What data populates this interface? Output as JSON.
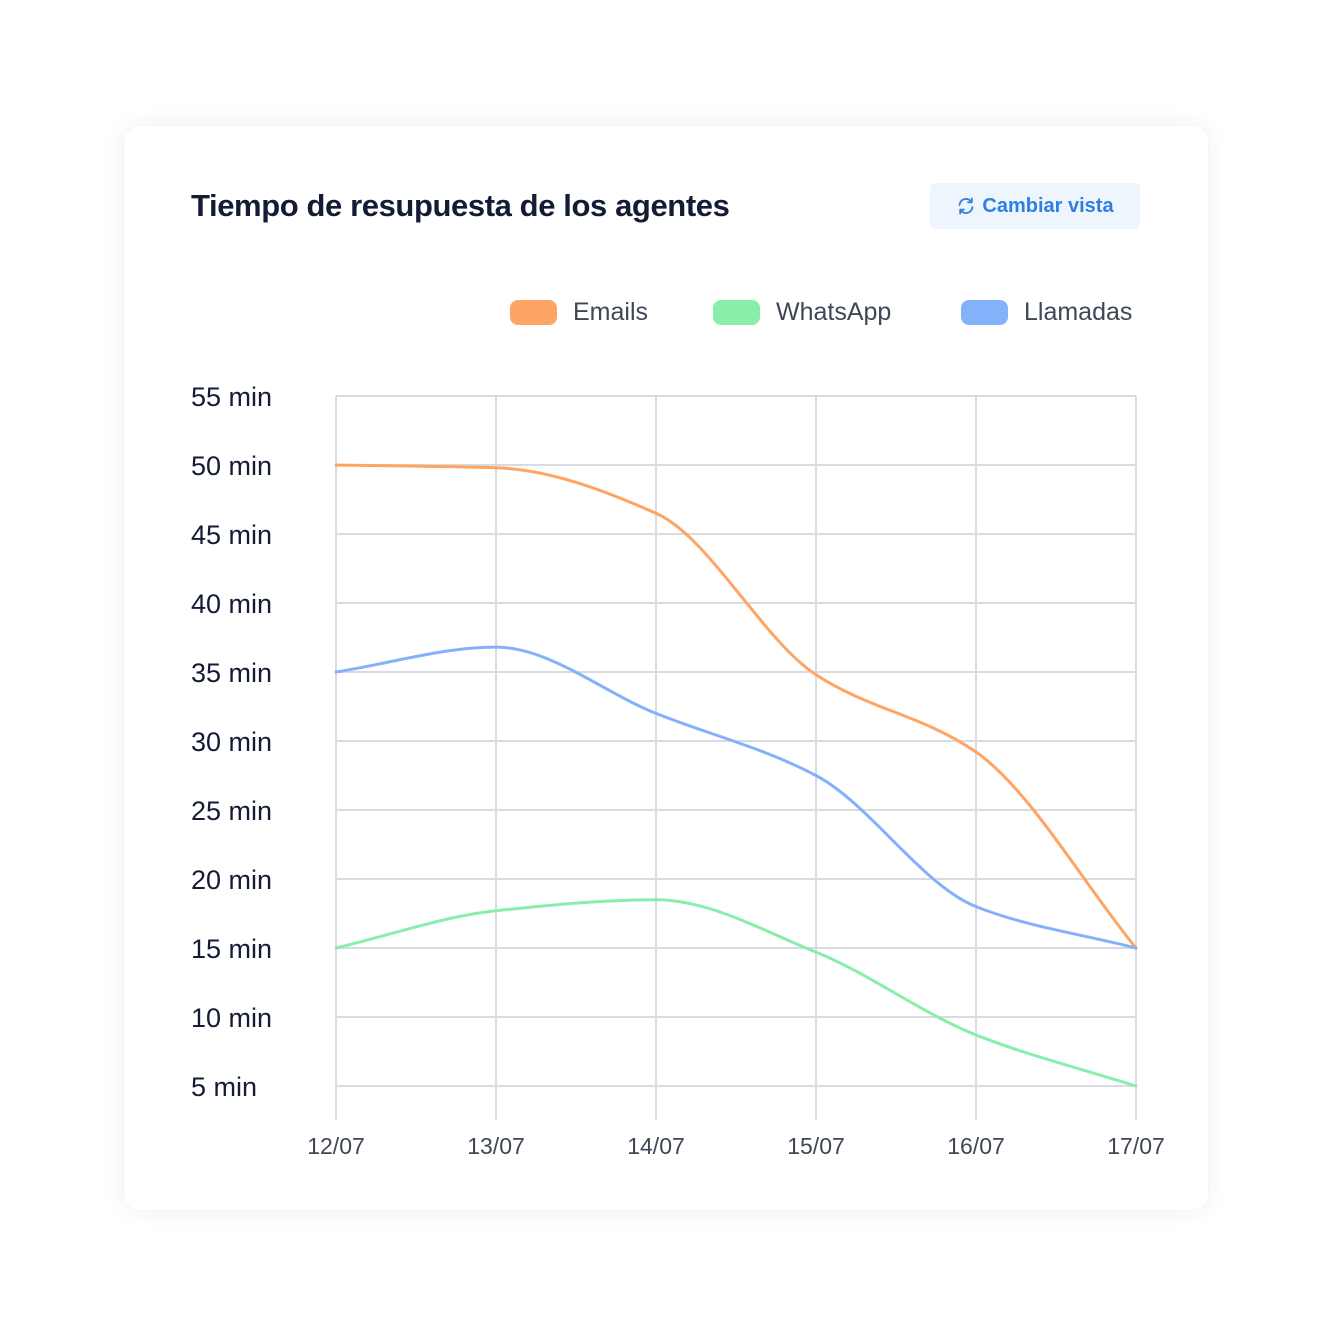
{
  "header": {
    "title": "Tiempo de resupuesta de los agentes",
    "switch_label": "Cambiar vista"
  },
  "chart_data": {
    "type": "line",
    "title": "Tiempo de resupuesta de los agentes",
    "categories": [
      "12/07",
      "13/07",
      "14/07",
      "15/07",
      "16/07",
      "17/07"
    ],
    "y_ticks": [
      "5 min",
      "10 min",
      "15 min",
      "20 min",
      "25 min",
      "30 min",
      "35 min",
      "40 min",
      "45 min",
      "50 min",
      "55 min"
    ],
    "ylim": [
      5,
      55
    ],
    "y_unit": "min",
    "grid": true,
    "legend_position": "top-right",
    "series": [
      {
        "name": "Emails",
        "color": "#ffa564",
        "values": [
          50,
          49.8,
          46.5,
          34.8,
          29.2,
          15
        ]
      },
      {
        "name": "WhatsApp",
        "color": "#88eeaa",
        "values": [
          15,
          17.7,
          18.5,
          14.7,
          8.7,
          5
        ]
      },
      {
        "name": "Llamadas",
        "color": "#84b2fa",
        "values": [
          35,
          36.8,
          32,
          27.5,
          18,
          15
        ]
      }
    ]
  }
}
